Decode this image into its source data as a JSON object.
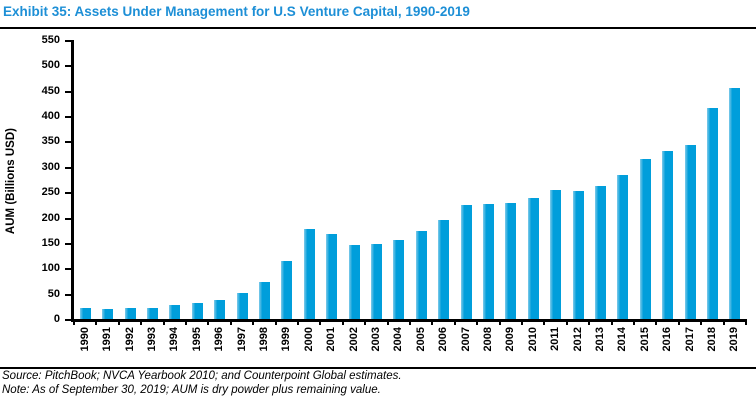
{
  "header": {
    "title": "Exhibit 35: Assets Under Management for U.S Venture Capital, 1990-2019"
  },
  "colors": {
    "title_blue": "#1d8fd6",
    "bar_fill": "#009edb",
    "bar_highlight": "#7fcbea",
    "axis_black": "#000000"
  },
  "chart_data": {
    "type": "bar",
    "title": "Exhibit 35: Assets Under Management for U.S Venture Capital, 1990-2019",
    "categories": [
      "1990",
      "1991",
      "1992",
      "1993",
      "1994",
      "1995",
      "1996",
      "1997",
      "1998",
      "1999",
      "2000",
      "2001",
      "2002",
      "2003",
      "2004",
      "2005",
      "2006",
      "2007",
      "2008",
      "2009",
      "2010",
      "2011",
      "2012",
      "2013",
      "2014",
      "2015",
      "2016",
      "2017",
      "2018",
      "2019"
    ],
    "values": [
      22,
      20,
      21,
      22,
      27,
      31,
      38,
      51,
      72,
      114,
      177,
      167,
      145,
      148,
      155,
      173,
      195,
      224,
      226,
      228,
      239,
      254,
      252,
      262,
      283,
      316,
      332,
      344,
      415,
      456
    ],
    "xlabel": "",
    "ylabel": "AUM (Billions USD)",
    "ylim": [
      0,
      550
    ],
    "ytick_step": 50,
    "yticks": [
      0,
      50,
      100,
      150,
      200,
      250,
      300,
      350,
      400,
      450,
      500,
      550
    ],
    "grid": false,
    "legend": false,
    "bar_color": "#009edb"
  },
  "footer": {
    "source": "Source: PitchBook; NVCA Yearbook 2010; and Counterpoint Global estimates.",
    "note": "Note: As of September 30, 2019; AUM is dry powder plus remaining value."
  }
}
